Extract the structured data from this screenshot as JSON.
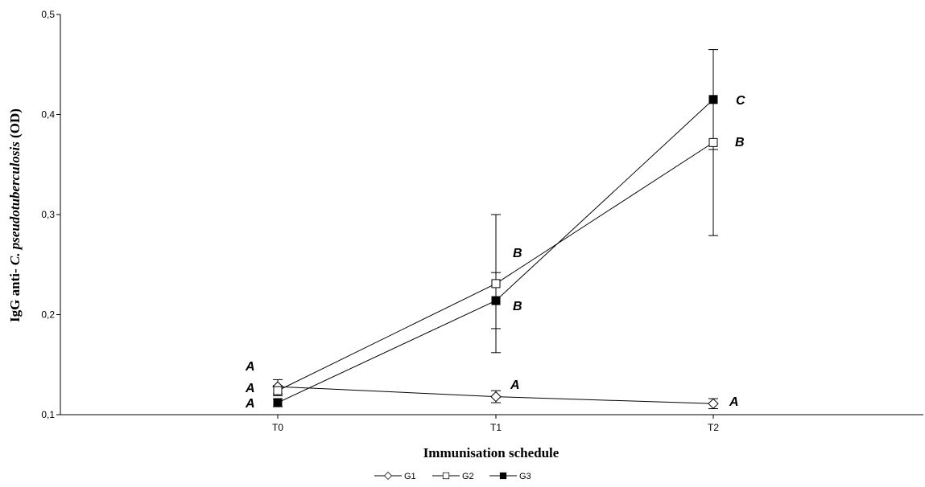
{
  "chart_data": {
    "type": "line",
    "xlabel": "Immunisation schedule",
    "ylabel_parts": {
      "prefix": "IgG anti- ",
      "italic": "C. pseudotuberculosis",
      "suffix": " (OD)"
    },
    "categories": [
      "T0",
      "T1",
      "T2"
    ],
    "ylim": [
      0.1,
      0.5
    ],
    "yticks": [
      0.1,
      0.2,
      0.3,
      0.4,
      0.5
    ],
    "ytick_labels": [
      "0,1",
      "0,2",
      "0,3",
      "0,4",
      "0,5"
    ],
    "grid": false,
    "legend_position": "bottom-center",
    "series": [
      {
        "name": "G1",
        "marker": "diamond-open",
        "values": [
          0.128,
          0.118,
          0.111
        ],
        "error": [
          0.007,
          0.006,
          0.005
        ],
        "letters": [
          "A",
          "A",
          "A"
        ]
      },
      {
        "name": "G2",
        "marker": "square-open",
        "values": [
          0.124,
          0.231,
          0.372
        ],
        "error": [
          0.005,
          0.069,
          0.093
        ],
        "letters": [
          "A",
          "B",
          "B"
        ]
      },
      {
        "name": "G3",
        "marker": "square-filled",
        "values": [
          0.112,
          0.214,
          0.415
        ],
        "error": [
          0.004,
          0.028,
          0.05
        ],
        "letters": [
          "A",
          "B",
          "C"
        ]
      }
    ]
  }
}
